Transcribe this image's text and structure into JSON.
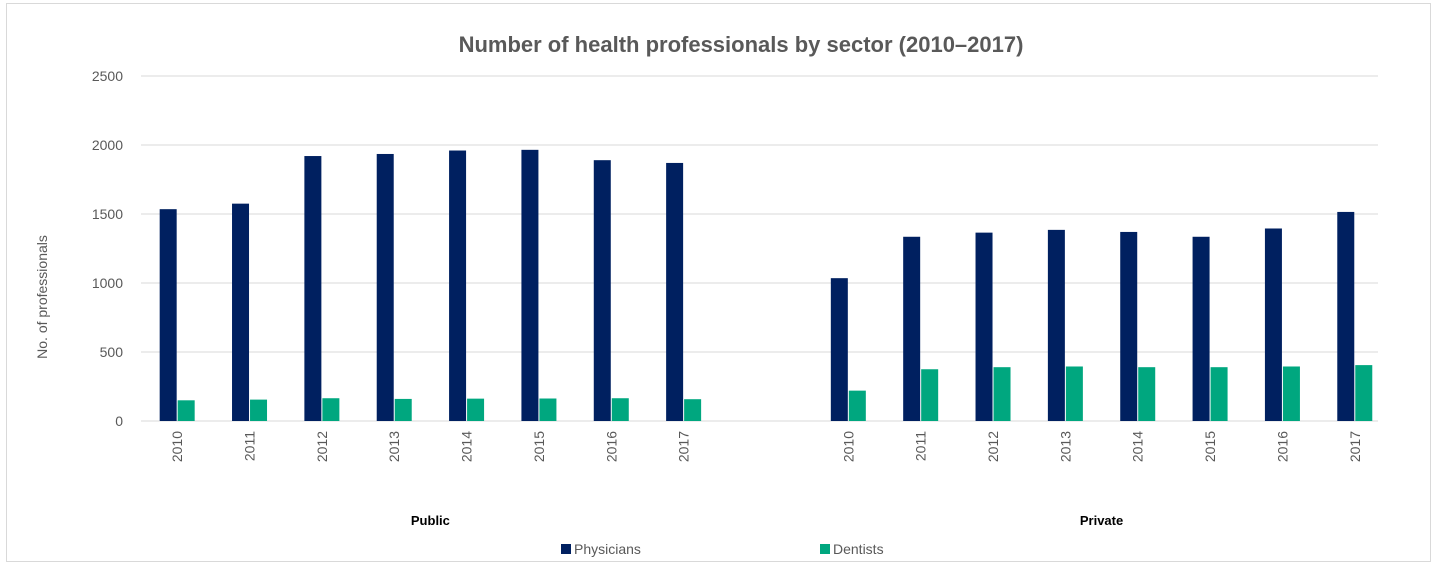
{
  "chart_data": {
    "type": "bar",
    "title": "Number of health professionals by sector (2010–2017)",
    "ylabel": "No. of professionals",
    "xlabel": "",
    "ylim": [
      0,
      2500
    ],
    "yticks": [
      "0",
      "500",
      "1000",
      "1500",
      "2000",
      "2500"
    ],
    "grid": true,
    "legend_position": "bottom",
    "groups": [
      {
        "name": "Public",
        "categories": [
          "2010",
          "2011",
          "2012",
          "2013",
          "2014",
          "2015",
          "2016",
          "2017"
        ],
        "series": [
          {
            "name": "Physicians",
            "values": [
              1535,
              1575,
              1920,
              1935,
              1960,
              1965,
              1890,
              1870
            ]
          },
          {
            "name": "Dentists",
            "values": [
              150,
              155,
              165,
              160,
              162,
              163,
              165,
              158
            ]
          }
        ]
      },
      {
        "name": "Private",
        "categories": [
          "2010",
          "2011",
          "2012",
          "2013",
          "2014",
          "2015",
          "2016",
          "2017"
        ],
        "series": [
          {
            "name": "Physicians",
            "values": [
              1035,
              1335,
              1365,
              1385,
              1370,
              1335,
              1395,
              1515
            ]
          },
          {
            "name": "Dentists",
            "values": [
              220,
              375,
              390,
              395,
              390,
              390,
              395,
              405
            ]
          }
        ]
      }
    ],
    "colors": {
      "Physicians": "#002060",
      "Dentists": "#00a77f"
    }
  }
}
